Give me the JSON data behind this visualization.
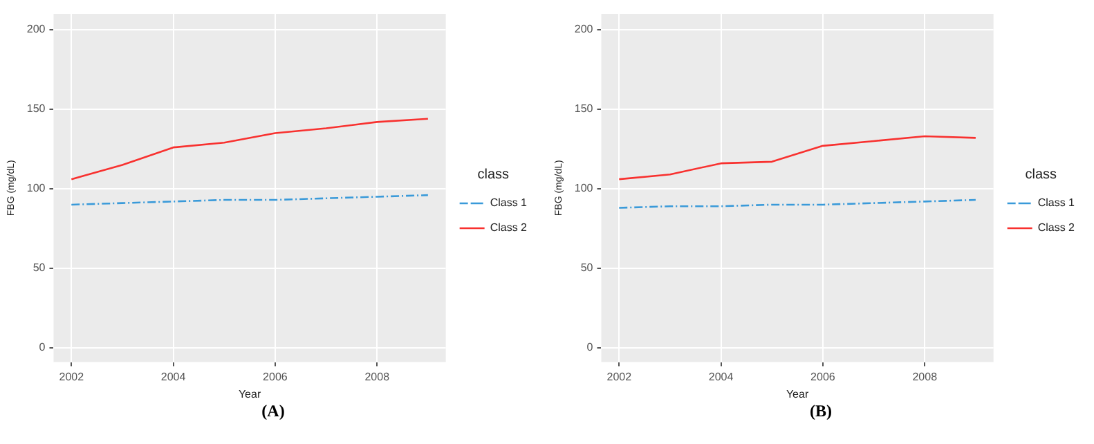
{
  "chart_data": [
    {
      "type": "line",
      "x": [
        2002,
        2003,
        2004,
        2005,
        2006,
        2007,
        2008,
        2009
      ],
      "xlabel": "Year",
      "ylabel": "FBG (mg/dL)",
      "legend_title": "class",
      "legend": "right",
      "grid": true,
      "xlim": [
        2001.65,
        2009.35
      ],
      "xticks": [
        2002,
        2004,
        2006,
        2008
      ],
      "ylim": [
        -9,
        210
      ],
      "yticks": [
        0,
        50,
        100,
        150,
        200
      ],
      "annotations": [
        "(A)"
      ],
      "series": [
        {
          "name": "Class 1",
          "color": "#3a9ad9",
          "line_style": "dashed",
          "values": [
            90,
            91,
            92,
            93,
            93,
            94,
            95,
            96
          ]
        },
        {
          "name": "Class 2",
          "color": "#f8312f",
          "line_style": "solid",
          "values": [
            106,
            115,
            126,
            129,
            135,
            138,
            142,
            144
          ]
        }
      ]
    },
    {
      "type": "line",
      "x": [
        2002,
        2003,
        2004,
        2005,
        2006,
        2007,
        2008,
        2009
      ],
      "xlabel": "Year",
      "ylabel": "FBG (mg/dL)",
      "legend_title": "class",
      "legend": "right",
      "grid": true,
      "xlim": [
        2001.65,
        2009.35
      ],
      "xticks": [
        2002,
        2004,
        2006,
        2008
      ],
      "ylim": [
        -9,
        210
      ],
      "yticks": [
        0,
        50,
        100,
        150,
        200
      ],
      "annotations": [
        "(B)"
      ],
      "series": [
        {
          "name": "Class 1",
          "color": "#3a9ad9",
          "line_style": "dashed",
          "values": [
            88,
            89,
            89,
            90,
            90,
            91,
            92,
            93
          ]
        },
        {
          "name": "Class 2",
          "color": "#f8312f",
          "line_style": "solid",
          "values": [
            106,
            109,
            116,
            117,
            127,
            130,
            133,
            132
          ]
        }
      ]
    }
  ]
}
